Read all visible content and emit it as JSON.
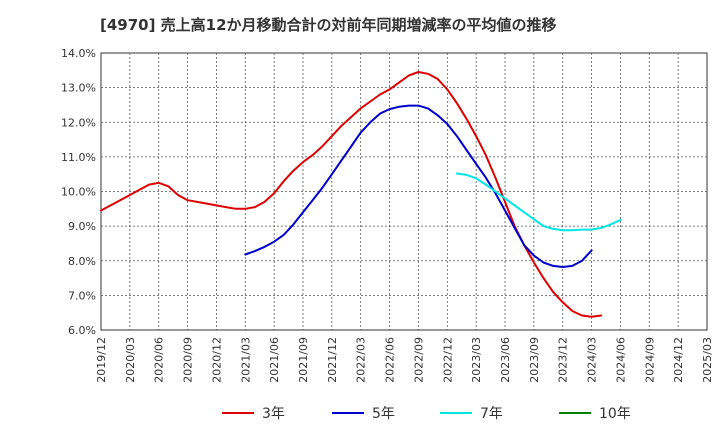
{
  "chart_data": {
    "type": "line",
    "title": "[4970]  売上高12か月移動合計の対前年同期増減率の平均値の推移",
    "y_unit": "%",
    "ylim": [
      6.0,
      14.0
    ],
    "y_ticks": [
      "14.0%",
      "13.0%",
      "12.0%",
      "11.0%",
      "10.0%",
      "9.0%",
      "8.0%",
      "7.0%",
      "6.0%"
    ],
    "x_ticks": [
      "2019/12",
      "2020/03",
      "2020/06",
      "2020/09",
      "2020/12",
      "2021/03",
      "2021/06",
      "2021/09",
      "2021/12",
      "2022/03",
      "2022/06",
      "2022/09",
      "2022/12",
      "2023/03",
      "2023/06",
      "2023/09",
      "2023/12",
      "2024/03",
      "2024/06",
      "2024/09",
      "2024/12",
      "2025/03"
    ],
    "grid": true,
    "legend_position": "bottom",
    "series": [
      {
        "name": "3年",
        "color": "#dd0000",
        "start_index": 0,
        "values": [
          9.45,
          9.6,
          9.75,
          9.9,
          10.05,
          10.2,
          10.25,
          10.15,
          9.9,
          9.75,
          9.7,
          9.65,
          9.6,
          9.55,
          9.5,
          9.5,
          9.55,
          9.7,
          9.95,
          10.3,
          10.6,
          10.85,
          11.05,
          11.3,
          11.6,
          11.9,
          12.15,
          12.4,
          12.6,
          12.8,
          12.95,
          13.15,
          13.35,
          13.45,
          13.4,
          13.25,
          12.95,
          12.55,
          12.1,
          11.6,
          11.05,
          10.4,
          9.7,
          9.0,
          8.45,
          7.95,
          7.5,
          7.1,
          6.8,
          6.55,
          6.42,
          6.38,
          6.42
        ]
      },
      {
        "name": "5年",
        "color": "#0000cc",
        "start_index": 15,
        "values": [
          8.18,
          8.28,
          8.4,
          8.55,
          8.75,
          9.05,
          9.4,
          9.75,
          10.1,
          10.5,
          10.9,
          11.3,
          11.7,
          12.0,
          12.25,
          12.38,
          12.45,
          12.48,
          12.48,
          12.4,
          12.2,
          11.95,
          11.6,
          11.2,
          10.8,
          10.4,
          9.95,
          9.45,
          8.95,
          8.45,
          8.15,
          7.95,
          7.85,
          7.82,
          7.85,
          8.0,
          8.3
        ]
      },
      {
        "name": "7年",
        "color": "#00e5e5",
        "start_index": 37,
        "values": [
          10.52,
          10.48,
          10.38,
          10.2,
          10.0,
          9.8,
          9.6,
          9.4,
          9.2,
          9.0,
          8.92,
          8.88,
          8.88,
          8.9,
          8.9,
          8.95,
          9.05,
          9.18
        ]
      },
      {
        "name": "10年",
        "color": "#008000",
        "start_index": 0,
        "values": []
      }
    ]
  }
}
